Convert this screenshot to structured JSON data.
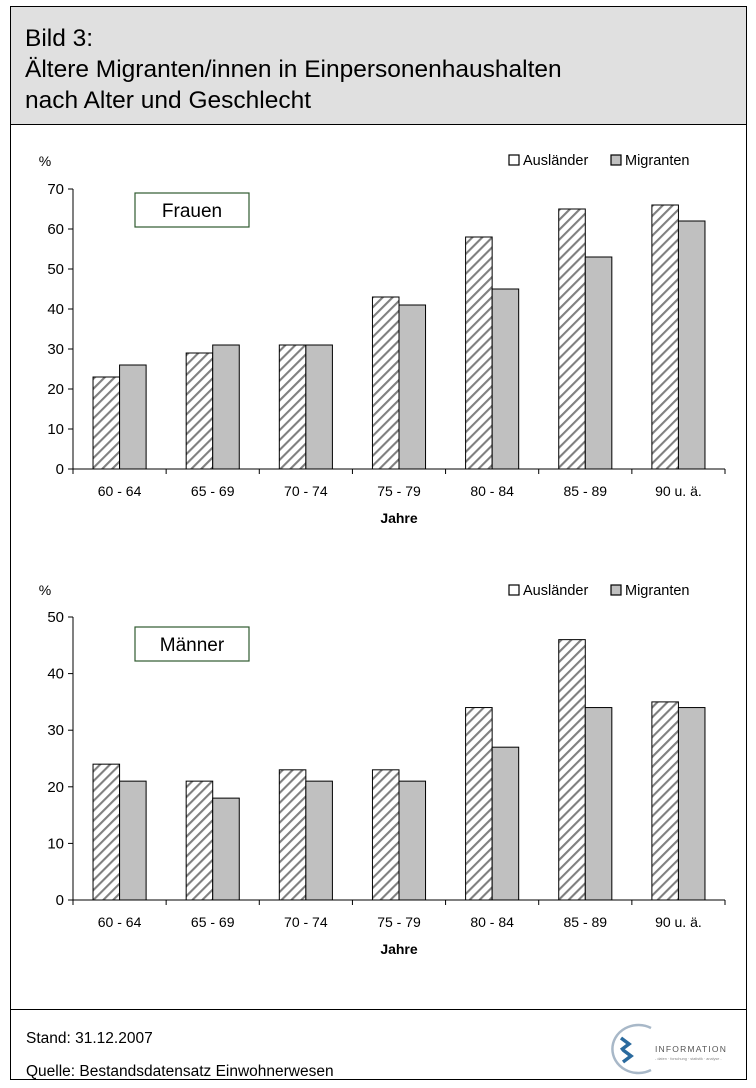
{
  "header": {
    "line1": "Bild 3:",
    "line2": "Ältere Migranten/innen in Einpersonenhaushalten",
    "line3": "nach Alter und Geschlecht"
  },
  "colors": {
    "auslaender": "#ffffff",
    "migranten": "#c0c0c0",
    "hatch": "#808080"
  },
  "chart_data": [
    {
      "type": "bar",
      "panel": "Frauen",
      "categories": [
        "60 - 64",
        "65 - 69",
        "70 - 74",
        "75 - 79",
        "80 - 84",
        "85 - 89",
        "90 u. ä."
      ],
      "series": [
        {
          "name": "Ausländer",
          "values": [
            23,
            29,
            31,
            43,
            58,
            65,
            66
          ]
        },
        {
          "name": "Migranten",
          "values": [
            26,
            31,
            31,
            41,
            45,
            53,
            62
          ]
        }
      ],
      "xlabel": "Jahre",
      "ylabel": "%",
      "ylim": [
        0,
        70
      ],
      "yticks": [
        0,
        10,
        20,
        30,
        40,
        50,
        60,
        70
      ],
      "legend": "top-right",
      "grid": false
    },
    {
      "type": "bar",
      "panel": "Männer",
      "categories": [
        "60 - 64",
        "65 - 69",
        "70 - 74",
        "75 - 79",
        "80 - 84",
        "85 - 89",
        "90 u. ä."
      ],
      "series": [
        {
          "name": "Ausländer",
          "values": [
            24,
            21,
            23,
            23,
            34,
            46,
            35
          ]
        },
        {
          "name": "Migranten",
          "values": [
            21,
            18,
            21,
            21,
            27,
            34,
            34
          ]
        }
      ],
      "xlabel": "Jahre",
      "ylabel": "%",
      "ylim": [
        0,
        50
      ],
      "yticks": [
        0,
        10,
        20,
        30,
        40,
        50
      ],
      "legend": "top-right",
      "grid": false
    }
  ],
  "footer": {
    "stand": "Stand: 31.12.2007",
    "quelle": "Quelle:  Bestandsdatensatz Einwohnerwesen",
    "logo_text": "INFORMATION",
    "logo_subtext": "- daten · forschung · statistik · analyse -"
  }
}
